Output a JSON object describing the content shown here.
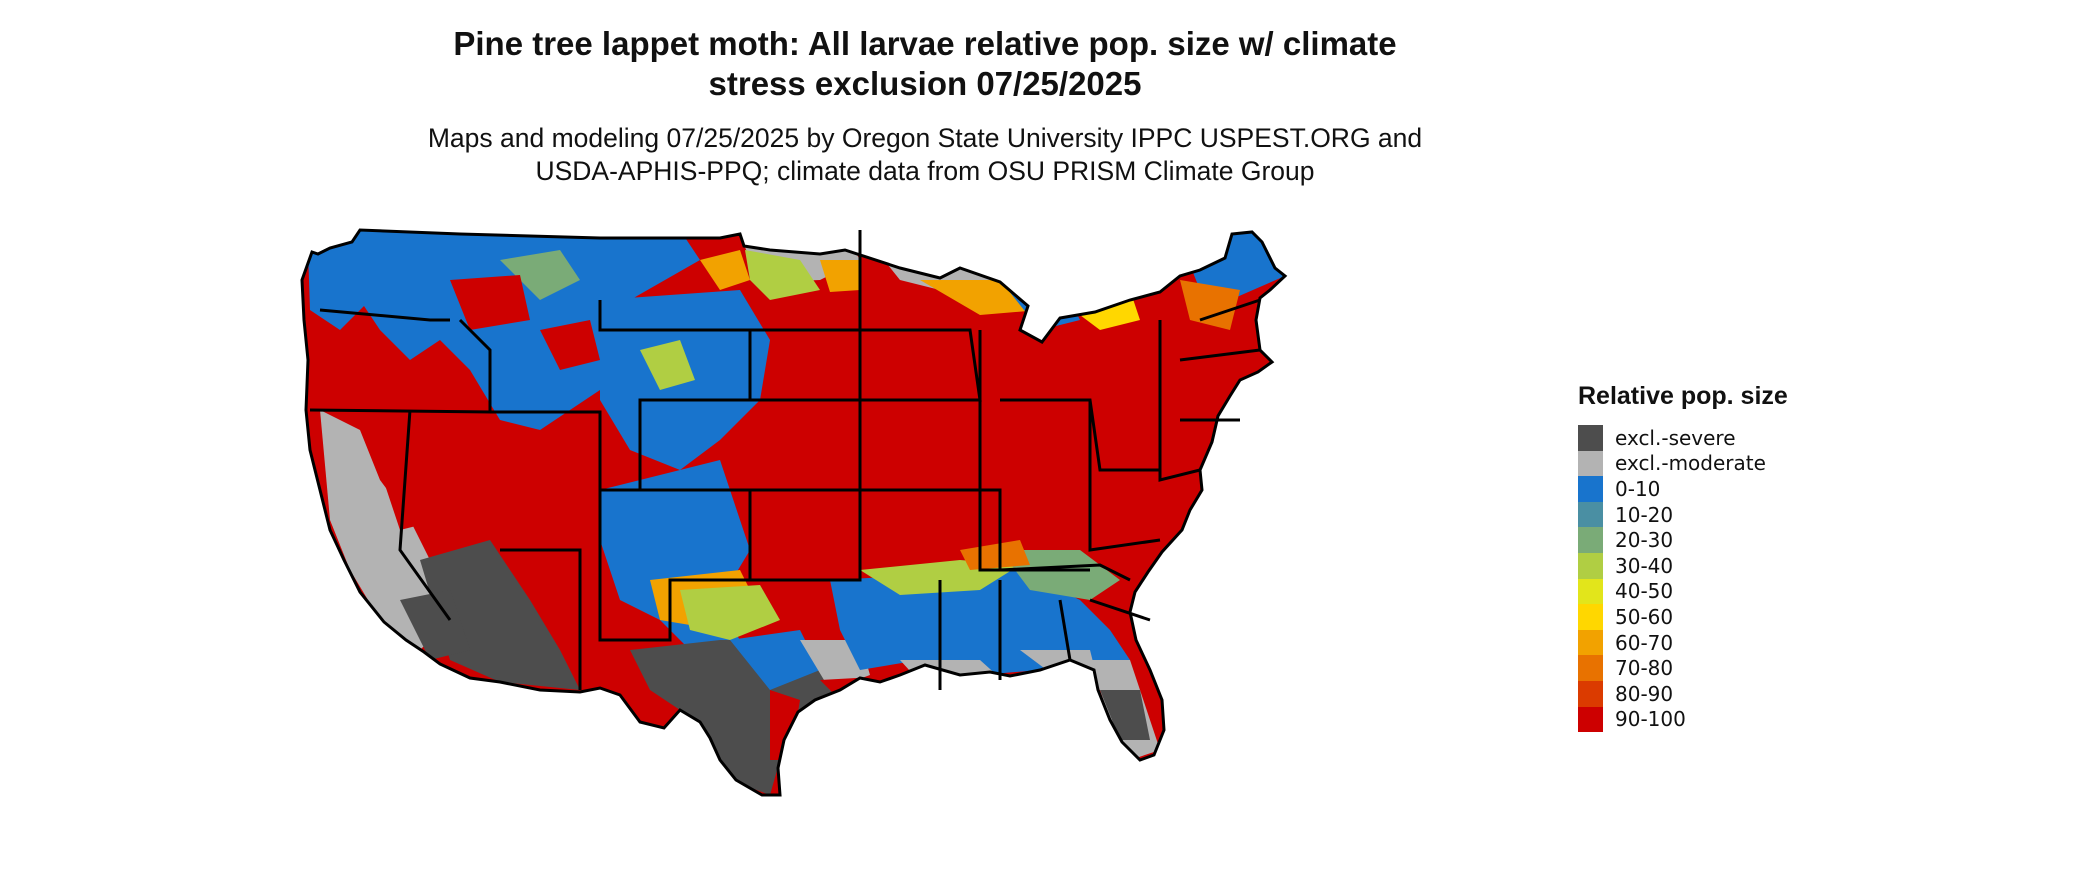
{
  "title": {
    "line1": "Pine tree lappet moth: All larvae relative pop. size w/ climate",
    "line2": "stress exclusion 07/25/2025"
  },
  "subtitle": {
    "line1": "Maps and modeling 07/25/2025 by Oregon State University IPPC USPEST.ORG and",
    "line2": "USDA-APHIS-PPQ; climate data from OSU PRISM Climate Group"
  },
  "legend": {
    "title": "Relative pop. size",
    "items": [
      {
        "label": "excl.-severe",
        "color": "#4d4d4d"
      },
      {
        "label": "excl.-moderate",
        "color": "#b3b3b3"
      },
      {
        "label": "0-10",
        "color": "#1874cd"
      },
      {
        "label": "10-20",
        "color": "#4a8fa3"
      },
      {
        "label": "20-30",
        "color": "#7aab77"
      },
      {
        "label": "30-40",
        "color": "#b0ce43"
      },
      {
        "label": "40-50",
        "color": "#e2e51b"
      },
      {
        "label": "50-60",
        "color": "#ffd700"
      },
      {
        "label": "60-70",
        "color": "#f2a200"
      },
      {
        "label": "70-80",
        "color": "#e87200"
      },
      {
        "label": "80-90",
        "color": "#db3b00"
      },
      {
        "label": "90-100",
        "color": "#cd0000"
      }
    ]
  },
  "map": {
    "region": "Contiguous United States",
    "boundary_color": "#000000",
    "dominant_classes": {
      "north_central_and_northeast": "90-100",
      "gulf_coast_and_desert_southwest": "excl.-severe",
      "northern_rockies": "0-10",
      "southeast_inland": "0-10"
    }
  }
}
